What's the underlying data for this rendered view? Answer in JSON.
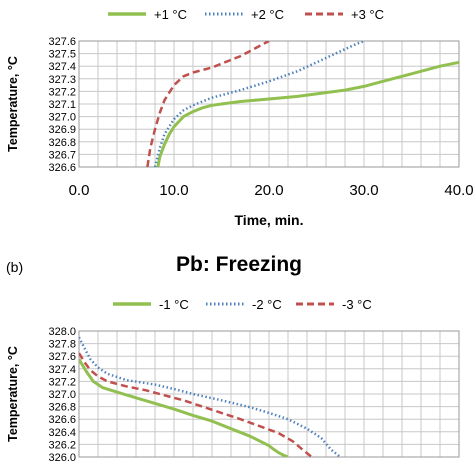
{
  "panel_b_label": "(b)",
  "chart_data": [
    {
      "type": "line",
      "title": "",
      "xlabel": "Time, min.",
      "ylabel": "Temperature, °C",
      "xlim": [
        0,
        40
      ],
      "ylim": [
        326.6,
        327.6
      ],
      "x_ticks": [
        "0.0",
        "10.0",
        "20.0",
        "30.0",
        "40.0"
      ],
      "y_ticks": [
        "326.6",
        "326.7",
        "326.8",
        "326.9",
        "327.0",
        "327.1",
        "327.2",
        "327.3",
        "327.4",
        "327.5",
        "327.6"
      ],
      "grid": true,
      "legend_position": "top",
      "series": [
        {
          "name": "+1 °C",
          "color": "#92c050",
          "style": "solid",
          "x": [
            8.3,
            8.5,
            9.0,
            9.5,
            10.0,
            11.0,
            12.0,
            13.0,
            14.0,
            15.0,
            17.0,
            20.0,
            23.0,
            25.0,
            28.0,
            30.0,
            33.0,
            35.0,
            38.0,
            40.0
          ],
          "y": [
            326.6,
            326.68,
            326.78,
            326.86,
            326.92,
            327.0,
            327.04,
            327.07,
            327.09,
            327.1,
            327.12,
            327.14,
            327.16,
            327.18,
            327.21,
            327.24,
            327.3,
            327.34,
            327.4,
            327.43
          ]
        },
        {
          "name": "+2 °C",
          "color": "#4f81bd",
          "style": "dotted",
          "x": [
            8.0,
            8.5,
            9.0,
            10.0,
            11.0,
            12.0,
            13.0,
            14.0,
            15.0,
            17.0,
            20.0,
            23.0,
            25.0,
            27.0,
            29.0,
            30.0
          ],
          "y": [
            326.6,
            326.75,
            326.86,
            326.98,
            327.05,
            327.09,
            327.12,
            327.15,
            327.17,
            327.21,
            327.28,
            327.36,
            327.43,
            327.5,
            327.57,
            327.6
          ]
        },
        {
          "name": "+3 °C",
          "color": "#c0504d",
          "style": "dashed",
          "x": [
            7.2,
            7.5,
            8.0,
            8.5,
            9.0,
            10.0,
            11.0,
            12.0,
            13.0,
            14.0,
            15.0,
            16.0,
            17.0,
            18.0,
            19.0,
            20.0
          ],
          "y": [
            326.6,
            326.75,
            326.9,
            327.03,
            327.13,
            327.25,
            327.32,
            327.35,
            327.37,
            327.39,
            327.42,
            327.45,
            327.48,
            327.52,
            327.56,
            327.6
          ]
        }
      ]
    },
    {
      "type": "line",
      "title": "Pb: Freezing",
      "xlabel": "",
      "ylabel": "Temperature, °C",
      "ylim": [
        326.0,
        328.0
      ],
      "y_ticks": [
        "326.0",
        "326.2",
        "326.4",
        "326.6",
        "326.8",
        "327.0",
        "327.2",
        "327.4",
        "327.6",
        "327.8",
        "328.0"
      ],
      "grid": true,
      "legend_position": "top",
      "series": [
        {
          "name": "-1 °C",
          "color": "#92c050",
          "style": "solid",
          "x": [
            0.0,
            0.8,
            1.5,
            2.5,
            4.0,
            6.0,
            8.0,
            10.0,
            12.0,
            14.0,
            16.0,
            18.0,
            20.0,
            20.5,
            21.0,
            21.5,
            22.0
          ],
          "y": [
            327.55,
            327.35,
            327.2,
            327.1,
            327.03,
            326.94,
            326.85,
            326.76,
            326.66,
            326.57,
            326.45,
            326.33,
            326.18,
            326.12,
            326.07,
            326.03,
            326.0
          ]
        },
        {
          "name": "-2 °C",
          "color": "#4f81bd",
          "style": "dotted",
          "x": [
            0.0,
            0.6,
            1.2,
            2.0,
            3.0,
            5.0,
            8.0,
            10.0,
            12.0,
            15.0,
            18.0,
            20.0,
            22.0,
            24.0,
            25.5,
            26.5,
            27.5
          ],
          "y": [
            327.9,
            327.72,
            327.55,
            327.42,
            327.32,
            327.22,
            327.15,
            327.08,
            327.0,
            326.9,
            326.79,
            326.7,
            326.6,
            326.45,
            326.3,
            326.12,
            326.0
          ]
        },
        {
          "name": "-3 °C",
          "color": "#c0504d",
          "style": "dashed",
          "x": [
            0.0,
            0.6,
            1.2,
            2.0,
            3.0,
            5.0,
            7.0,
            9.0,
            11.0,
            13.0,
            15.0,
            17.0,
            19.0,
            21.0,
            22.5,
            23.5,
            24.5
          ],
          "y": [
            327.65,
            327.5,
            327.38,
            327.28,
            327.2,
            327.12,
            327.06,
            326.98,
            326.9,
            326.8,
            326.7,
            326.6,
            326.49,
            326.38,
            326.25,
            326.12,
            326.0
          ]
        }
      ]
    }
  ]
}
